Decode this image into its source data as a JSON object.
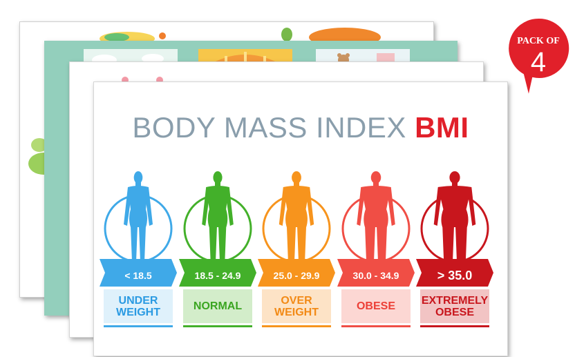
{
  "poster": {
    "title_main": "BODY MASS INDEX",
    "title_accent": "BMI",
    "categories": [
      {
        "range": "< 18.5",
        "label": "UNDER\nWEIGHT",
        "color": "#3fa9e8",
        "box_bg": "#dff1fb",
        "text_color": "#2a9ae2"
      },
      {
        "range": "18.5 - 24.9",
        "label": "NORMAL",
        "color": "#43b02a",
        "box_bg": "#d3edca",
        "text_color": "#3aa521"
      },
      {
        "range": "25.0 - 29.9",
        "label": "OVER\nWEIGHT",
        "color": "#f7941d",
        "box_bg": "#fde3c6",
        "text_color": "#f28a16"
      },
      {
        "range": "30.0 - 34.9",
        "label": "OBESE",
        "color": "#f04e45",
        "box_bg": "#fcd7d3",
        "text_color": "#ec4037"
      },
      {
        "range": "> 35.0",
        "label": "EXTREMELY\nOBESE",
        "color": "#c8161d",
        "box_bg": "#f2c4c4",
        "text_color": "#c8161d"
      }
    ]
  },
  "badge": {
    "text": "PACK OF",
    "number": "4",
    "color": "#e1202a"
  },
  "backgrounds": {
    "card2_color": "#93cfbc",
    "panel_colors": [
      "#e8f5f0",
      "#f7c64a",
      "#eaf4f6"
    ]
  }
}
